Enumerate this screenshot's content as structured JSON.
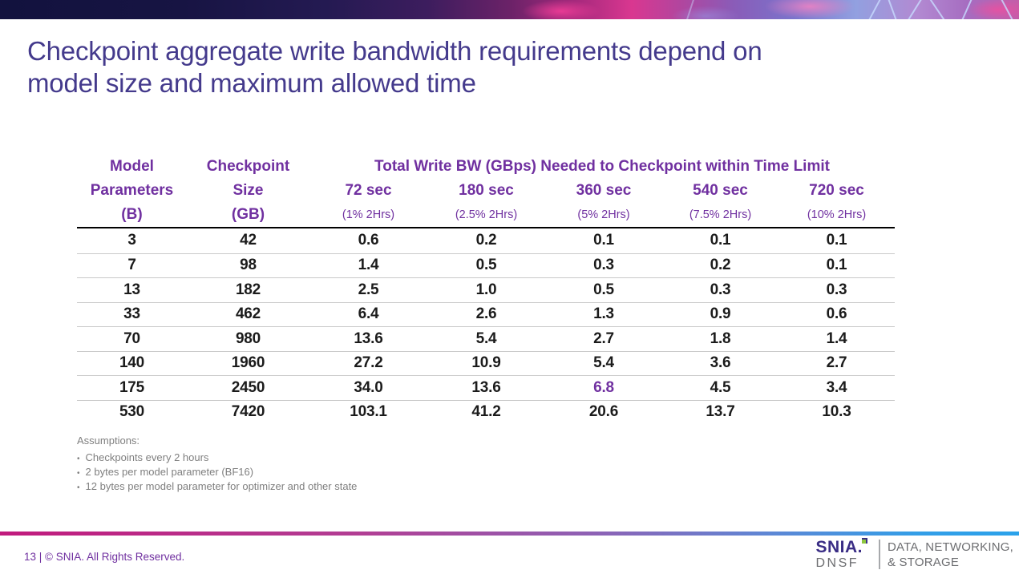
{
  "colors": {
    "title_purple": "#443A8C",
    "table_header_purple": "#7030A0",
    "highlight_purple": "#7030A0",
    "body_text": "#1B1B1B",
    "assumptions_gray": "#7F7F7F",
    "row_divider_gray": "#C9C9C9",
    "logo_purple": "#3A2D85",
    "logo_green": "#8DC63F",
    "logo_gray": "#6D6E71",
    "footer_bar_left_pink": "#C11A7D",
    "footer_bar_right_blue": "#2BA2EA"
  },
  "title": {
    "line1": "Checkpoint aggregate write bandwidth requirements depend on",
    "line2": "model size and maximum allowed time"
  },
  "table": {
    "group_header": "Total Write BW (GBps) Needed to Checkpoint within Time Limit",
    "col1": {
      "line1": "Model",
      "line2": "Parameters",
      "line3": "(B)"
    },
    "col2": {
      "line1": "Checkpoint",
      "line2": "Size",
      "line3": "(GB)"
    },
    "time_columns": [
      {
        "label": "72 sec",
        "sublabel": "(1% 2Hrs)"
      },
      {
        "label": "180 sec",
        "sublabel": "(2.5% 2Hrs)"
      },
      {
        "label": "360 sec",
        "sublabel": "(5% 2Hrs)"
      },
      {
        "label": "540 sec",
        "sublabel": "(7.5% 2Hrs)"
      },
      {
        "label": "720 sec",
        "sublabel": "(10% 2Hrs)"
      }
    ],
    "rows": [
      [
        "3",
        "42",
        "0.6",
        "0.2",
        "0.1",
        "0.1",
        "0.1"
      ],
      [
        "7",
        "98",
        "1.4",
        "0.5",
        "0.3",
        "0.2",
        "0.1"
      ],
      [
        "13",
        "182",
        "2.5",
        "1.0",
        "0.5",
        "0.3",
        "0.3"
      ],
      [
        "33",
        "462",
        "6.4",
        "2.6",
        "1.3",
        "0.9",
        "0.6"
      ],
      [
        "70",
        "980",
        "13.6",
        "5.4",
        "2.7",
        "1.8",
        "1.4"
      ],
      [
        "140",
        "1960",
        "27.2",
        "10.9",
        "5.4",
        "3.6",
        "2.7"
      ],
      [
        "175",
        "2450",
        "34.0",
        "13.6",
        "6.8",
        "4.5",
        "3.4"
      ],
      [
        "530",
        "7420",
        "103.1",
        "41.2",
        "20.6",
        "13.7",
        "10.3"
      ]
    ],
    "highlight": {
      "row": 6,
      "col": 4
    }
  },
  "assumptions": {
    "heading": "Assumptions:",
    "items": [
      "Checkpoints every 2 hours",
      "2 bytes per model parameter (BF16)",
      "12 bytes per model parameter for optimizer and other state"
    ]
  },
  "footer": {
    "page_info": "13 | © SNIA. All Rights Reserved.",
    "logo": {
      "snia": "SNIA.",
      "dnsf": "DNSF",
      "tagline_line1": "DATA, NETWORKING,",
      "tagline_line2": "& STORAGE"
    }
  }
}
